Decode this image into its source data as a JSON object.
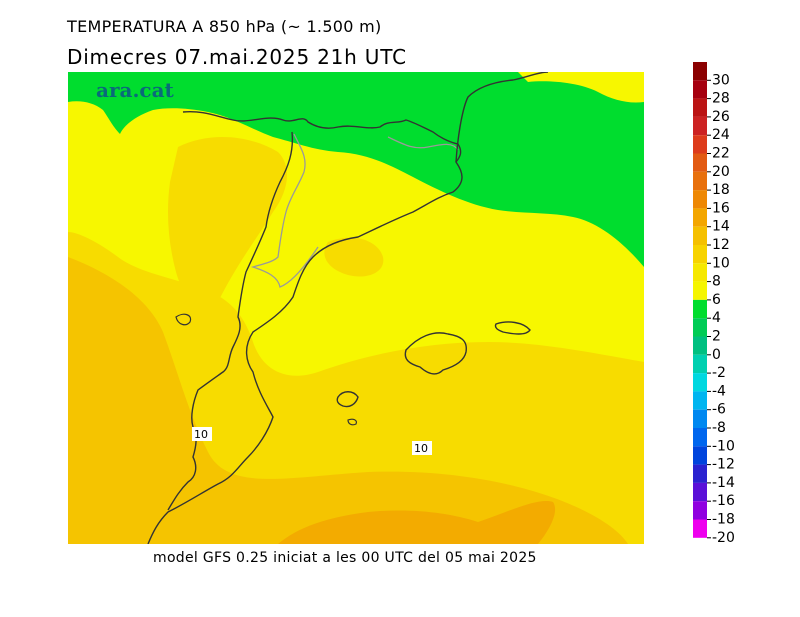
{
  "header": {
    "title": "TEMPERATURA A 850 hPa (~ 1.500 m)",
    "subtitle": "Dimecres   07.mai.2025 21h UTC"
  },
  "map": {
    "logo_text": "ara.cat",
    "contour_labels": [
      "10",
      "10"
    ],
    "colors": {
      "green": "#00dd2e",
      "yellow": "#f7f700",
      "light_orange": "#f7dc00",
      "orange": "#f5c400",
      "dark_orange": "#f3ab00",
      "border": "#333333",
      "inner_border": "#9a9a9a"
    }
  },
  "legend": {
    "labels": [
      "30",
      "28",
      "26",
      "24",
      "22",
      "20",
      "18",
      "16",
      "14",
      "12",
      "10",
      "8",
      "6",
      "4",
      "2",
      "0",
      "-2",
      "-4",
      "-6",
      "-8",
      "-10",
      "-12",
      "-14",
      "-16",
      "-18",
      "-20"
    ],
    "colors": [
      "#8b0000",
      "#a60010",
      "#bb1414",
      "#cc2222",
      "#dd3b1b",
      "#e25a12",
      "#e8700c",
      "#ee8804",
      "#f3a600",
      "#f5c000",
      "#f7d300",
      "#f6e800",
      "#f5f500",
      "#00dd2e",
      "#00cc55",
      "#00c080",
      "#00d0b0",
      "#00d8e0",
      "#00b5f0",
      "#0088f0",
      "#0066ee",
      "#0044dd",
      "#2a22d0",
      "#5a10d8",
      "#9000e0",
      "#ee00ee"
    ]
  },
  "footer": {
    "text": "model GFS 0.25 iniciat a les 00 UTC del 05 mai 2025"
  }
}
